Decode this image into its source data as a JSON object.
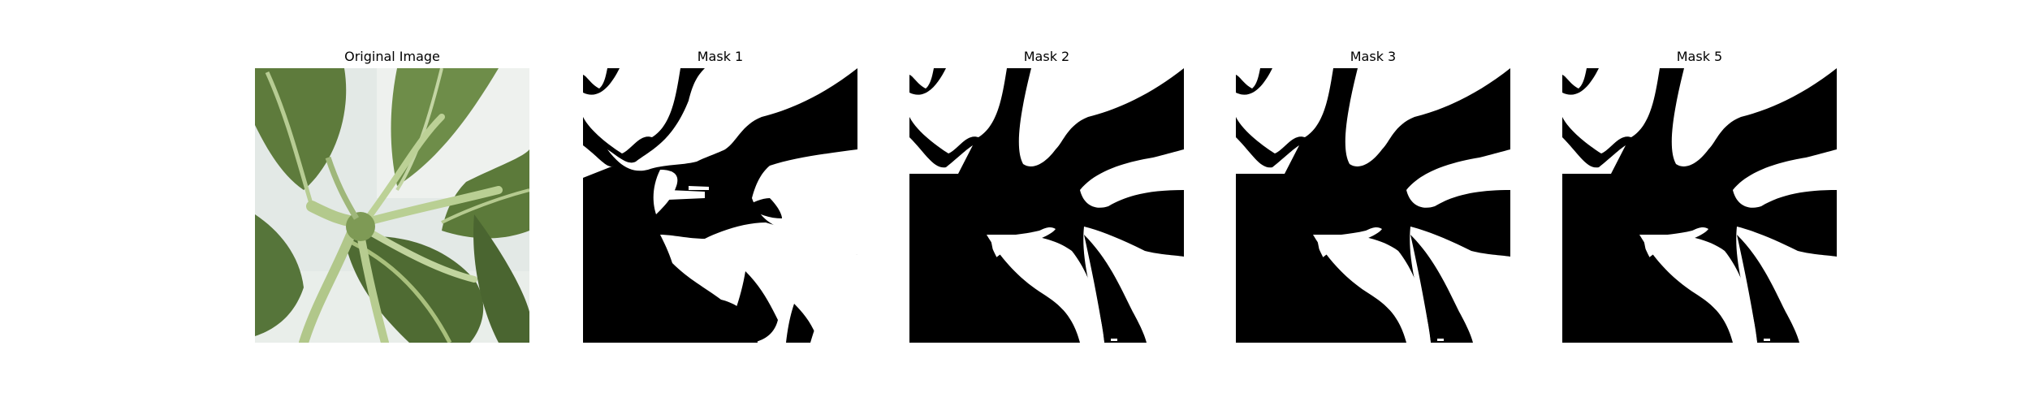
{
  "figure": {
    "panels": [
      {
        "title": "Original Image",
        "kind": "photo"
      },
      {
        "title": "Mask 1",
        "kind": "mask"
      },
      {
        "title": "Mask 2",
        "kind": "mask"
      },
      {
        "title": "Mask 3",
        "kind": "mask"
      },
      {
        "title": "Mask 5",
        "kind": "mask"
      }
    ]
  },
  "colors": {
    "background": "#ffffff",
    "mask_foreground": "#ffffff",
    "mask_background": "#000000",
    "leaf_dark": "#4f6b33",
    "leaf_mid": "#6c8b45",
    "leaf_light": "#a8c079",
    "stem": "#b9cf8f",
    "backdrop": "#dfe6e2"
  }
}
